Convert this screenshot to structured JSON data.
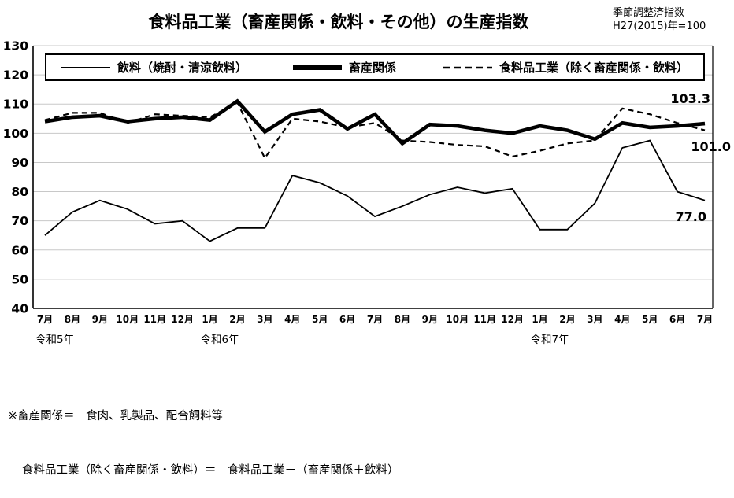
{
  "title": "食料品工業（畜産関係・飲料・その他）の生産指数",
  "note": {
    "line1": "季節調整済指数",
    "line2": "H27(2015)年=100"
  },
  "legend": {
    "items": [
      {
        "label": "飲料（焼酎・清涼飲料）",
        "style": "thin-solid"
      },
      {
        "label": "畜産関係",
        "style": "thick-solid"
      },
      {
        "label": "食料品工業（除く畜産関係・飲料）",
        "style": "dashed"
      }
    ]
  },
  "chart_data": {
    "type": "line",
    "title": "食料品工業（畜産関係・飲料・その他）の生産指数",
    "x": [
      "7月",
      "8月",
      "9月",
      "10月",
      "11月",
      "12月",
      "1月",
      "2月",
      "3月",
      "4月",
      "5月",
      "6月",
      "7月",
      "8月",
      "9月",
      "10月",
      "11月",
      "12月",
      "1月",
      "2月",
      "3月",
      "4月",
      "5月",
      "6月",
      "7月"
    ],
    "year_groups": [
      {
        "label": "令和5年",
        "start_index": 0
      },
      {
        "label": "令和6年",
        "start_index": 6
      },
      {
        "label": "令和7年",
        "start_index": 18
      }
    ],
    "series": [
      {
        "name": "飲料（焼酎・清涼飲料）",
        "style": "thin-solid",
        "end_label": "77.0",
        "values": [
          65,
          73,
          77,
          74,
          69,
          70,
          63,
          67.5,
          67.5,
          85.5,
          83,
          78.5,
          71.5,
          75,
          79,
          81.5,
          79.5,
          81,
          67,
          67,
          76,
          95,
          97.5,
          80,
          77
        ]
      },
      {
        "name": "畜産関係",
        "style": "thick-solid",
        "end_label": "103.3",
        "values": [
          104,
          105.5,
          106,
          104,
          105,
          105.5,
          104.5,
          111,
          100.5,
          106.5,
          108,
          101.5,
          106.5,
          96.5,
          103,
          102.5,
          101,
          100,
          102.5,
          101,
          98,
          103.5,
          102,
          102.5,
          103.3
        ]
      },
      {
        "name": "食料品工業（除く畜産関係・飲料）",
        "style": "dashed",
        "end_label": "101.0",
        "values": [
          104.5,
          107,
          107,
          103.5,
          106.5,
          106,
          105.5,
          110.5,
          91.5,
          105,
          104,
          102,
          103.5,
          97.5,
          97,
          96,
          95.5,
          92,
          94,
          96.5,
          97.5,
          108.5,
          106.5,
          103.5,
          101
        ]
      }
    ],
    "ylim": [
      40,
      130
    ],
    "yticks": [
      40,
      50,
      60,
      70,
      80,
      90,
      100,
      110,
      120,
      130
    ],
    "grid": true,
    "legend_position": "top",
    "colors": {
      "line": "#000000",
      "grid": "#c8c8c8",
      "background": "#ffffff"
    }
  },
  "footnotes": {
    "line1": "※畜産関係＝　食肉、乳製品、配合飼料等",
    "line2": "食料品工業（除く畜産関係・飲料）＝　食料品工業－（畜産関係＋飲料）"
  }
}
